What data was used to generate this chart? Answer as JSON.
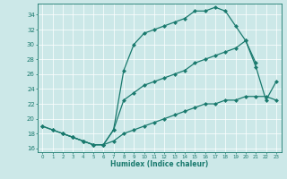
{
  "xlabel": "Humidex (Indice chaleur)",
  "bg_color": "#cce8e8",
  "line_color": "#1a7a6e",
  "xlim": [
    -0.5,
    23.5
  ],
  "ylim": [
    15.5,
    35.5
  ],
  "xticks": [
    0,
    1,
    2,
    3,
    4,
    5,
    6,
    7,
    8,
    9,
    10,
    11,
    12,
    13,
    14,
    15,
    16,
    17,
    18,
    19,
    20,
    21,
    22,
    23
  ],
  "yticks": [
    16,
    18,
    20,
    22,
    24,
    26,
    28,
    30,
    32,
    34
  ],
  "curve1_x": [
    0,
    1,
    2,
    3,
    4,
    5,
    6,
    7,
    8,
    9,
    10,
    11,
    12,
    13,
    14,
    15,
    16,
    17,
    18,
    19,
    20,
    21
  ],
  "curve1_y": [
    19,
    18.5,
    18,
    17.5,
    17,
    16.5,
    16.5,
    18.5,
    26.5,
    30,
    31.5,
    32,
    32.5,
    33,
    33.5,
    34.5,
    34.5,
    35,
    34.5,
    32.5,
    30.5,
    27.5
  ],
  "curve2_x": [
    2,
    3,
    4,
    5,
    6,
    7,
    8,
    9,
    10,
    11,
    12,
    13,
    14,
    15,
    16,
    17,
    18,
    19,
    20,
    21,
    22,
    23
  ],
  "curve2_y": [
    18,
    17.5,
    17,
    16.5,
    16.5,
    18.5,
    22.5,
    23.5,
    24.5,
    25,
    25.5,
    26,
    26.5,
    27.5,
    28,
    28.5,
    29,
    29.5,
    30.5,
    27,
    22.5,
    25
  ],
  "curve3_x": [
    0,
    1,
    2,
    3,
    4,
    5,
    6,
    7,
    8,
    9,
    10,
    11,
    12,
    13,
    14,
    15,
    16,
    17,
    18,
    19,
    20,
    21,
    22,
    23
  ],
  "curve3_y": [
    19,
    18.5,
    18,
    17.5,
    17,
    16.5,
    16.5,
    17,
    18,
    18.5,
    19,
    19.5,
    20,
    20.5,
    21,
    21.5,
    22,
    22,
    22.5,
    22.5,
    23,
    23,
    23,
    22.5
  ]
}
